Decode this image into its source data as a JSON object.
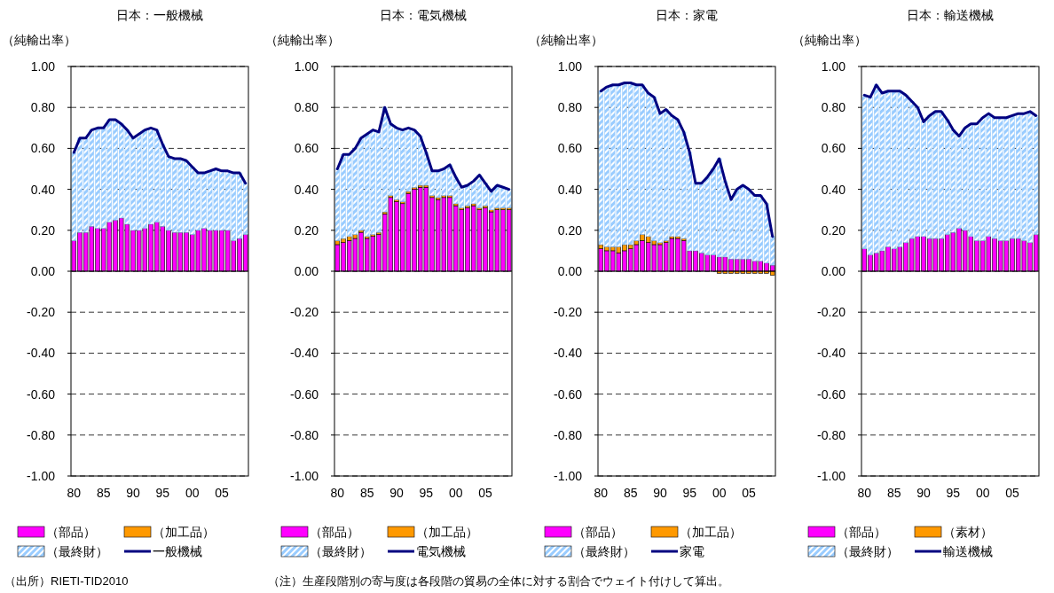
{
  "chart_data": [
    {
      "type": "bar",
      "stacked": true,
      "title": "日本：一般機械",
      "ylabel": "（純輸出率）",
      "categories": [
        "80",
        null,
        null,
        null,
        null,
        "85",
        null,
        null,
        null,
        null,
        "90",
        null,
        null,
        null,
        null,
        "95",
        null,
        null,
        null,
        null,
        "00",
        null,
        null,
        null,
        null,
        "05",
        null,
        null,
        null,
        null
      ],
      "ylim": [
        -1,
        1
      ],
      "yticks": [
        {
          "value": -1,
          "label": "-1.00"
        },
        {
          "value": -0.8,
          "label": "-0.80"
        },
        {
          "value": -0.6,
          "label": "-0.60"
        },
        {
          "value": -0.4,
          "label": "-0.40"
        },
        {
          "value": -0.2,
          "label": "-0.20"
        },
        {
          "value": 0,
          "label": "0.00"
        },
        {
          "value": 0.2,
          "label": "0.20"
        },
        {
          "value": 0.4,
          "label": "0.40"
        },
        {
          "value": 0.6,
          "label": "0.60"
        },
        {
          "value": 0.8,
          "label": "0.80"
        },
        {
          "value": 1,
          "label": "1.00"
        }
      ],
      "grid": "y",
      "legend": "bottom",
      "series": [
        {
          "name": "（部品）",
          "color": "#ff00ff",
          "values": [
            0.15,
            0.19,
            0.19,
            0.22,
            0.21,
            0.21,
            0.24,
            0.25,
            0.26,
            0.23,
            0.2,
            0.2,
            0.21,
            0.23,
            0.24,
            0.22,
            0.2,
            0.19,
            0.19,
            0.19,
            0.18,
            0.2,
            0.21,
            0.2,
            0.2,
            0.2,
            0.2,
            0.15,
            0.16,
            0.18
          ]
        },
        {
          "name": "（加工品）",
          "color": "#ff9900",
          "values": [
            0,
            0,
            0,
            0,
            0,
            0,
            0,
            0,
            0,
            0,
            0,
            0,
            0,
            0,
            0,
            0,
            0,
            0,
            0,
            0,
            0,
            0,
            0,
            0,
            0,
            0,
            0,
            0,
            0,
            0
          ]
        },
        {
          "name": "（最終財）",
          "color": "#99ccff",
          "values": [
            0.43,
            0.46,
            0.46,
            0.47,
            0.49,
            0.49,
            0.5,
            0.49,
            0.46,
            0.46,
            0.45,
            0.47,
            0.48,
            0.47,
            0.45,
            0.4,
            0.36,
            0.36,
            0.36,
            0.35,
            0.33,
            0.28,
            0.27,
            0.29,
            0.3,
            0.29,
            0.29,
            0.33,
            0.32,
            0.25
          ]
        },
        {
          "name": "一般機械",
          "type": "line",
          "color": "#000080",
          "values": [
            0.58,
            0.65,
            0.65,
            0.69,
            0.7,
            0.7,
            0.74,
            0.74,
            0.72,
            0.69,
            0.65,
            0.67,
            0.69,
            0.7,
            0.69,
            0.62,
            0.56,
            0.55,
            0.55,
            0.54,
            0.51,
            0.48,
            0.48,
            0.49,
            0.5,
            0.49,
            0.49,
            0.48,
            0.48,
            0.43
          ]
        }
      ],
      "annotations": [
        "（出所）RIETI-TID2010"
      ]
    },
    {
      "type": "bar",
      "stacked": true,
      "title": "日本：電気機械",
      "ylabel": "（純輸出率）",
      "categories": [
        "80",
        null,
        null,
        null,
        null,
        "85",
        null,
        null,
        null,
        null,
        "90",
        null,
        null,
        null,
        null,
        "95",
        null,
        null,
        null,
        null,
        "00",
        null,
        null,
        null,
        null,
        "05",
        null,
        null,
        null,
        null
      ],
      "ylim": [
        -1,
        1
      ],
      "yticks": [
        {
          "value": -1,
          "label": "-1.00"
        },
        {
          "value": -0.8,
          "label": "-0.80"
        },
        {
          "value": -0.6,
          "label": "-0.60"
        },
        {
          "value": -0.4,
          "label": "-0.40"
        },
        {
          "value": -0.2,
          "label": "-0.20"
        },
        {
          "value": 0,
          "label": "0.00"
        },
        {
          "value": 0.2,
          "label": "0.20"
        },
        {
          "value": 0.4,
          "label": "0.40"
        },
        {
          "value": 0.6,
          "label": "0.60"
        },
        {
          "value": 0.8,
          "label": "0.80"
        },
        {
          "value": 1,
          "label": "1.00"
        }
      ],
      "grid": "y",
      "legend": "bottom",
      "series": [
        {
          "name": "（部品）",
          "color": "#ff00ff",
          "values": [
            0.13,
            0.14,
            0.15,
            0.16,
            0.19,
            0.16,
            0.17,
            0.18,
            0.28,
            0.36,
            0.34,
            0.33,
            0.38,
            0.4,
            0.41,
            0.41,
            0.36,
            0.35,
            0.36,
            0.36,
            0.32,
            0.3,
            0.31,
            0.32,
            0.3,
            0.31,
            0.29,
            0.3,
            0.3,
            0.3
          ]
        },
        {
          "name": "（加工品）",
          "color": "#ff9900",
          "values": [
            0.02,
            0.02,
            0.02,
            0.02,
            0.01,
            0.01,
            0.01,
            0.01,
            0.01,
            0.01,
            0.01,
            0.01,
            0.01,
            0.01,
            0.01,
            0.01,
            0.01,
            0.01,
            0.01,
            0.01,
            0.01,
            0.01,
            0.01,
            0.01,
            0.01,
            0.01,
            0.01,
            0.01,
            0.01,
            0.01
          ]
        },
        {
          "name": "（最終財）",
          "color": "#99ccff",
          "values": [
            0.35,
            0.41,
            0.4,
            0.42,
            0.45,
            0.5,
            0.51,
            0.49,
            0.51,
            0.35,
            0.35,
            0.35,
            0.31,
            0.28,
            0.24,
            0.16,
            0.12,
            0.13,
            0.13,
            0.15,
            0.13,
            0.1,
            0.1,
            0.11,
            0.16,
            0.11,
            0.09,
            0.11,
            0.1,
            0.09
          ]
        },
        {
          "name": "電気機械",
          "type": "line",
          "color": "#000080",
          "values": [
            0.5,
            0.57,
            0.57,
            0.6,
            0.65,
            0.67,
            0.69,
            0.68,
            0.8,
            0.72,
            0.7,
            0.69,
            0.7,
            0.69,
            0.66,
            0.58,
            0.49,
            0.49,
            0.5,
            0.52,
            0.46,
            0.41,
            0.42,
            0.44,
            0.47,
            0.43,
            0.39,
            0.42,
            0.41,
            0.4
          ]
        }
      ],
      "annotations": [
        "（注）生産段階別の寄与度は各段階の貿易の全体に対する割合でウェイト付けして算出。"
      ]
    },
    {
      "type": "bar",
      "stacked": true,
      "title": "日本：家電",
      "ylabel": "（純輸出率）",
      "categories": [
        "80",
        null,
        null,
        null,
        null,
        "85",
        null,
        null,
        null,
        null,
        "90",
        null,
        null,
        null,
        null,
        "95",
        null,
        null,
        null,
        null,
        "00",
        null,
        null,
        null,
        null,
        "05",
        null,
        null,
        null,
        null
      ],
      "ylim": [
        -1,
        1
      ],
      "yticks": [
        {
          "value": -1,
          "label": "-1.00"
        },
        {
          "value": -0.8,
          "label": "-0.80"
        },
        {
          "value": -0.6,
          "label": "-0.60"
        },
        {
          "value": -0.4,
          "label": "-0.40"
        },
        {
          "value": -0.2,
          "label": "-0.20"
        },
        {
          "value": 0,
          "label": "0.00"
        },
        {
          "value": 0.2,
          "label": "0.20"
        },
        {
          "value": 0.4,
          "label": "0.40"
        },
        {
          "value": 0.6,
          "label": "0.60"
        },
        {
          "value": 0.8,
          "label": "0.80"
        },
        {
          "value": 1,
          "label": "1.00"
        }
      ],
      "grid": "y",
      "legend": "bottom",
      "series": [
        {
          "name": "（部品）",
          "color": "#ff00ff",
          "values": [
            0.11,
            0.1,
            0.1,
            0.09,
            0.1,
            0.11,
            0.13,
            0.15,
            0.14,
            0.13,
            0.13,
            0.14,
            0.16,
            0.16,
            0.15,
            0.1,
            0.1,
            0.09,
            0.08,
            0.08,
            0.07,
            0.07,
            0.06,
            0.06,
            0.06,
            0.06,
            0.05,
            0.05,
            0.04,
            0.03
          ]
        },
        {
          "name": "（加工品）",
          "color": "#ff9900",
          "values": [
            0.02,
            0.02,
            0.02,
            0.03,
            0.03,
            0.02,
            0.02,
            0.03,
            0.03,
            0.02,
            0.01,
            0.01,
            0.01,
            0.01,
            0.01,
            0,
            0,
            0,
            0,
            0,
            -0.01,
            -0.01,
            -0.01,
            -0.01,
            -0.01,
            -0.01,
            -0.01,
            -0.01,
            -0.01,
            -0.02
          ]
        },
        {
          "name": "（最終財）",
          "color": "#99ccff",
          "values": [
            0.75,
            0.78,
            0.79,
            0.79,
            0.79,
            0.79,
            0.76,
            0.73,
            0.7,
            0.7,
            0.63,
            0.64,
            0.59,
            0.57,
            0.52,
            0.48,
            0.33,
            0.34,
            0.38,
            0.42,
            0.48,
            0.37,
            0.29,
            0.34,
            0.36,
            0.34,
            0.32,
            0.32,
            0.29,
            0.14
          ]
        },
        {
          "name": "家電",
          "type": "line",
          "color": "#000080",
          "values": [
            0.88,
            0.9,
            0.91,
            0.91,
            0.92,
            0.92,
            0.91,
            0.91,
            0.87,
            0.85,
            0.77,
            0.79,
            0.76,
            0.74,
            0.68,
            0.58,
            0.43,
            0.43,
            0.46,
            0.5,
            0.55,
            0.44,
            0.35,
            0.4,
            0.42,
            0.4,
            0.37,
            0.37,
            0.33,
            0.17
          ]
        }
      ]
    },
    {
      "type": "bar",
      "stacked": true,
      "title": "日本：輸送機械",
      "ylabel": "（純輸出率）",
      "categories": [
        "80",
        null,
        null,
        null,
        null,
        "85",
        null,
        null,
        null,
        null,
        "90",
        null,
        null,
        null,
        null,
        "95",
        null,
        null,
        null,
        null,
        "00",
        null,
        null,
        null,
        null,
        "05",
        null,
        null,
        null,
        null
      ],
      "ylim": [
        -1,
        1
      ],
      "yticks": [
        {
          "value": -1,
          "label": "-1.00"
        },
        {
          "value": -0.8,
          "label": "-0.80"
        },
        {
          "value": -0.6,
          "label": "-0.60"
        },
        {
          "value": -0.4,
          "label": "-0.40"
        },
        {
          "value": -0.2,
          "label": "-0.20"
        },
        {
          "value": 0,
          "label": "0.00"
        },
        {
          "value": 0.2,
          "label": "0.20"
        },
        {
          "value": 0.4,
          "label": "0.40"
        },
        {
          "value": 0.6,
          "label": "0.60"
        },
        {
          "value": 0.8,
          "label": "0.80"
        },
        {
          "value": 1,
          "label": "1.00"
        }
      ],
      "grid": "y",
      "legend": "bottom",
      "series": [
        {
          "name": "（部品）",
          "color": "#ff00ff",
          "values": [
            0.11,
            0.08,
            0.09,
            0.1,
            0.12,
            0.11,
            0.12,
            0.14,
            0.16,
            0.17,
            0.17,
            0.16,
            0.16,
            0.16,
            0.18,
            0.19,
            0.21,
            0.2,
            0.17,
            0.15,
            0.15,
            0.17,
            0.16,
            0.15,
            0.15,
            0.16,
            0.16,
            0.15,
            0.14,
            0.18
          ]
        },
        {
          "name": "（素材）",
          "color": "#ff9900",
          "values": [
            0,
            0,
            0,
            0,
            0,
            0,
            0,
            0,
            0,
            0,
            0,
            0,
            0,
            0,
            0,
            0,
            0,
            0,
            0,
            0,
            0,
            0,
            0,
            0,
            0,
            0,
            0,
            0,
            0,
            0
          ]
        },
        {
          "name": "（最終財）",
          "color": "#99ccff",
          "values": [
            0.75,
            0.77,
            0.82,
            0.77,
            0.76,
            0.77,
            0.76,
            0.72,
            0.67,
            0.63,
            0.56,
            0.6,
            0.62,
            0.62,
            0.56,
            0.5,
            0.45,
            0.5,
            0.55,
            0.57,
            0.6,
            0.6,
            0.59,
            0.6,
            0.6,
            0.6,
            0.61,
            0.62,
            0.64,
            0.58
          ]
        },
        {
          "name": "輸送機械",
          "type": "line",
          "color": "#000080",
          "values": [
            0.86,
            0.85,
            0.91,
            0.87,
            0.88,
            0.88,
            0.88,
            0.86,
            0.83,
            0.8,
            0.73,
            0.76,
            0.78,
            0.78,
            0.74,
            0.69,
            0.66,
            0.7,
            0.72,
            0.72,
            0.75,
            0.77,
            0.75,
            0.75,
            0.75,
            0.76,
            0.77,
            0.77,
            0.78,
            0.76
          ]
        }
      ]
    }
  ]
}
